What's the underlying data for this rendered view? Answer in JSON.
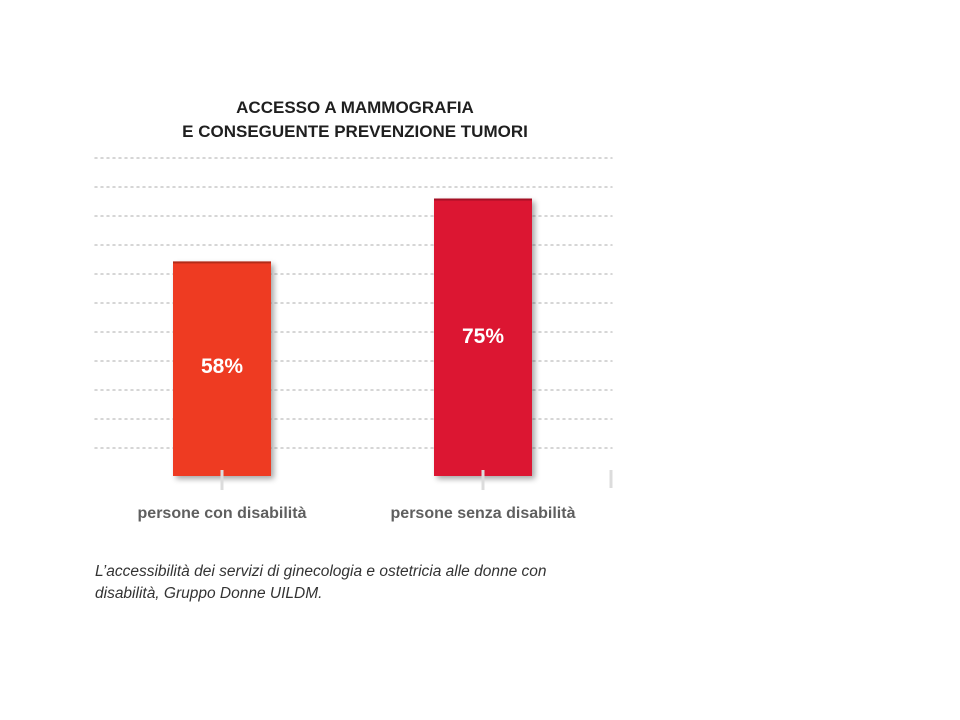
{
  "chart_data": {
    "type": "bar",
    "title_lines": [
      "ACCESSO A MAMMOGRAFIA",
      "E CONSEGUENTE PREVENZIONE TUMORI"
    ],
    "categories": [
      "persone con disabilità",
      "persone senza disabilità"
    ],
    "values": [
      58,
      75
    ],
    "value_labels": [
      "58%",
      "75%"
    ],
    "ylim": [
      0,
      100
    ],
    "grid": true,
    "colors": [
      "#ee3b24",
      "#dc1631"
    ]
  },
  "caption": {
    "line1": "L’accessibilità dei servizi di ginecologia e ostetricia alle donne con",
    "line2": "disabilità, Gruppo Donne UILDM."
  }
}
